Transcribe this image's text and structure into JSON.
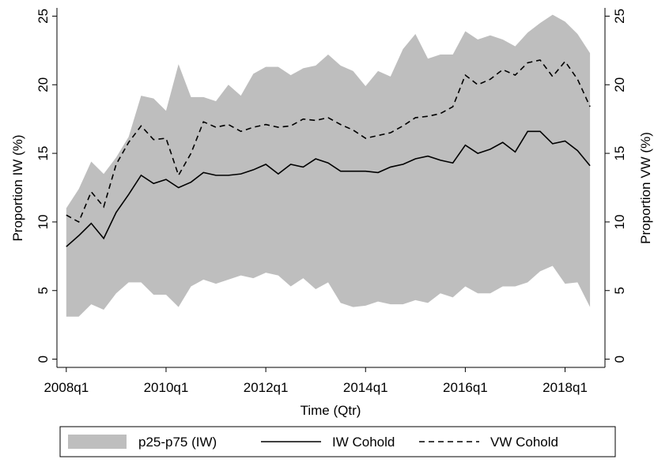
{
  "chart_data": {
    "type": "line",
    "x_label": "Time (Qtr)",
    "y_label": "Proportion IW (%)",
    "y2_label": "Proportion VW (%)",
    "x": [
      192,
      193,
      194,
      195,
      196,
      197,
      198,
      199,
      200,
      201,
      202,
      203,
      204,
      205,
      206,
      207,
      208,
      209,
      210,
      211,
      212,
      213,
      214,
      215,
      216,
      217,
      218,
      219,
      220,
      221,
      222,
      223,
      224,
      225,
      226,
      227,
      228,
      229,
      230,
      231,
      232,
      233,
      234
    ],
    "xlim": [
      191.25,
      235.2
    ],
    "xticks": [
      {
        "value": 192,
        "label": "2008q1"
      },
      {
        "value": 200,
        "label": "2010q1"
      },
      {
        "value": 208,
        "label": "2012q1"
      },
      {
        "value": 216,
        "label": "2014q1"
      },
      {
        "value": 224,
        "label": "2016q1"
      },
      {
        "value": 232,
        "label": "2018q1"
      }
    ],
    "ylim": [
      -0.6,
      25.6
    ],
    "yticks": [
      0,
      5,
      10,
      15,
      20,
      25
    ],
    "y2lim": [
      -0.6,
      25.6
    ],
    "y2ticks": [
      0,
      5,
      10,
      15,
      20,
      25
    ],
    "band": {
      "name": "p25-p75 (IW)",
      "color": "#bebebe",
      "low": [
        3.1,
        3.1,
        4.0,
        3.6,
        4.8,
        5.6,
        5.6,
        4.7,
        4.7,
        3.8,
        5.3,
        5.8,
        5.5,
        5.8,
        6.1,
        5.9,
        6.3,
        6.1,
        5.3,
        5.9,
        5.1,
        5.6,
        4.1,
        3.8,
        3.9,
        4.2,
        4.0,
        4.0,
        4.3,
        4.1,
        4.8,
        4.5,
        5.3,
        4.8,
        4.8,
        5.3,
        5.3,
        5.6,
        6.4,
        6.8,
        5.5,
        5.6,
        3.8
      ],
      "high": [
        11.0,
        12.4,
        14.4,
        13.5,
        14.7,
        16.2,
        19.2,
        19.0,
        18.1,
        21.5,
        19.1,
        19.1,
        18.8,
        20.0,
        19.2,
        20.8,
        21.3,
        21.3,
        20.7,
        21.2,
        21.4,
        22.2,
        21.4,
        21.0,
        19.9,
        21.0,
        20.6,
        22.6,
        23.7,
        21.9,
        22.2,
        22.2,
        23.9,
        23.3,
        23.6,
        23.3,
        22.8,
        23.8,
        24.5,
        25.1,
        24.6,
        23.7,
        22.3
      ]
    },
    "series": [
      {
        "name": "IW Cohold",
        "color": "#000000",
        "dash": "solid",
        "values": [
          8.2,
          9.0,
          9.9,
          8.8,
          10.7,
          12.0,
          13.4,
          12.8,
          13.1,
          12.5,
          12.9,
          13.6,
          13.4,
          13.4,
          13.5,
          13.8,
          14.2,
          13.5,
          14.2,
          14.0,
          14.6,
          14.3,
          13.7,
          13.7,
          13.7,
          13.6,
          14.0,
          14.2,
          14.6,
          14.8,
          14.5,
          14.3,
          15.6,
          15.0,
          15.3,
          15.8,
          15.1,
          16.6,
          16.6,
          15.7,
          15.9,
          15.2,
          14.1
        ]
      },
      {
        "name": "VW Cohold",
        "color": "#000000",
        "dash": "dashed",
        "axis": "y2",
        "values": [
          10.5,
          10.0,
          12.2,
          11.1,
          14.2,
          15.8,
          17.0,
          16.0,
          16.1,
          13.4,
          15.0,
          17.3,
          16.9,
          17.1,
          16.6,
          16.9,
          17.1,
          16.9,
          17.0,
          17.5,
          17.4,
          17.6,
          17.1,
          16.7,
          16.1,
          16.3,
          16.5,
          17.0,
          17.6,
          17.7,
          17.9,
          18.4,
          20.7,
          20.0,
          20.4,
          21.1,
          20.7,
          21.6,
          21.8,
          20.6,
          21.7,
          20.4,
          18.4
        ]
      }
    ],
    "legend": "bottom"
  }
}
